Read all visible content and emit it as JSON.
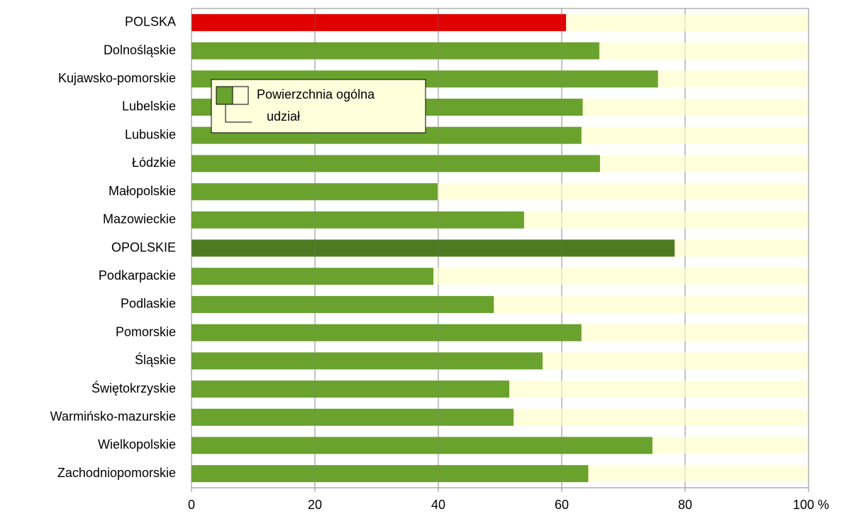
{
  "chart_data": {
    "type": "bar",
    "orientation": "horizontal",
    "categories": [
      "POLSKA",
      "Dolnośląskie",
      "Kujawsko-pomorskie",
      "Lubelskie",
      "Lubuskie",
      "Łódzkie",
      "Małopolskie",
      "Mazowieckie",
      "OPOLSKIE",
      "Podkarpackie",
      "Podlaskie",
      "Pomorskie",
      "Śląskie",
      "Świętokrzyskie",
      "Warmińsko-mazurskie",
      "Wielkopolskie",
      "Zachodniopomorskie"
    ],
    "series": [
      {
        "name": "Powierzchnia ogólna",
        "color": "#ffffdc",
        "values": [
          100,
          100,
          100,
          100,
          100,
          100,
          100,
          100,
          100,
          100,
          100,
          100,
          100,
          100,
          100,
          100,
          100
        ]
      },
      {
        "name": "udział",
        "color": "#6aa22e",
        "colors": [
          "#e00000",
          "#6aa22e",
          "#6aa22e",
          "#6aa22e",
          "#6aa22e",
          "#6aa22e",
          "#6aa22e",
          "#6aa22e",
          "#4e7a22",
          "#6aa22e",
          "#6aa22e",
          "#6aa22e",
          "#6aa22e",
          "#6aa22e",
          "#6aa22e",
          "#6aa22e",
          "#6aa22e"
        ],
        "values": [
          60.7,
          66.1,
          75.6,
          63.4,
          63.2,
          66.2,
          39.9,
          53.9,
          78.3,
          39.2,
          49.0,
          63.2,
          56.9,
          51.5,
          52.2,
          74.7,
          64.3
        ]
      }
    ],
    "xlim": [
      0,
      100
    ],
    "xticks": [
      0,
      20,
      40,
      60,
      80,
      {
        "value": 100,
        "label": "100 %"
      }
    ],
    "grid": true
  }
}
